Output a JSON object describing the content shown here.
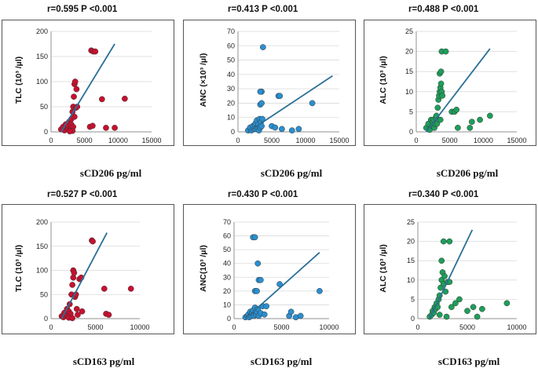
{
  "colors": {
    "red": "#c8102e",
    "blue": "#2a8fd0",
    "green": "#1e9e5a",
    "trend": "#2a6f97",
    "frame": "#555555"
  },
  "chart_data": [
    {
      "type": "scatter",
      "stat": "r=0.595    P <0.001",
      "ylabel": "TLC (10³ /µl)",
      "xlabel": "sCD206 pg/ml",
      "xlim": [
        0,
        15000
      ],
      "ylim": [
        0,
        200
      ],
      "xticks": [
        "0",
        "5000",
        "10000",
        "15000"
      ],
      "yticks": [
        "0",
        "50",
        "100",
        "150",
        "200"
      ],
      "color": "red",
      "trend": [
        [
          1500,
          0
        ],
        [
          9500,
          175
        ]
      ],
      "points": [
        [
          1500,
          5
        ],
        [
          1800,
          10
        ],
        [
          2000,
          3
        ],
        [
          2200,
          15
        ],
        [
          2400,
          8
        ],
        [
          2500,
          5
        ],
        [
          2600,
          12
        ],
        [
          2700,
          20
        ],
        [
          2800,
          3
        ],
        [
          2900,
          7
        ],
        [
          3000,
          15
        ],
        [
          3000,
          25
        ],
        [
          3100,
          5
        ],
        [
          3200,
          40
        ],
        [
          3300,
          10
        ],
        [
          3300,
          50
        ],
        [
          3400,
          70
        ],
        [
          3500,
          95
        ],
        [
          3500,
          30
        ],
        [
          3600,
          100
        ],
        [
          3700,
          48
        ],
        [
          3800,
          85
        ],
        [
          3900,
          50
        ],
        [
          3200,
          2
        ],
        [
          2800,
          1
        ],
        [
          6000,
          162
        ],
        [
          6300,
          160
        ],
        [
          6600,
          160
        ],
        [
          5800,
          10
        ],
        [
          6200,
          12
        ],
        [
          7600,
          65
        ],
        [
          8200,
          8
        ],
        [
          9500,
          8
        ],
        [
          11000,
          66
        ]
      ]
    },
    {
      "type": "scatter",
      "stat": "r=0.413    P <0.001",
      "ylabel": "ANC (×10³ /µl)",
      "xlabel": "sCD206 pg/ml",
      "xlim": [
        0,
        15000
      ],
      "ylim": [
        0,
        70
      ],
      "xticks": [
        "0",
        "5000",
        "10000",
        "15000"
      ],
      "yticks": [
        "0",
        "10",
        "20",
        "30",
        "40",
        "50",
        "60",
        "70"
      ],
      "color": "blue",
      "trend": [
        [
          1500,
          0
        ],
        [
          14000,
          39
        ]
      ],
      "points": [
        [
          1500,
          1
        ],
        [
          1800,
          3
        ],
        [
          2000,
          1
        ],
        [
          2200,
          4
        ],
        [
          2400,
          2
        ],
        [
          2500,
          5
        ],
        [
          2600,
          6
        ],
        [
          2700,
          2
        ],
        [
          2800,
          8
        ],
        [
          2900,
          3
        ],
        [
          3000,
          5
        ],
        [
          3100,
          1
        ],
        [
          3200,
          9
        ],
        [
          3300,
          3
        ],
        [
          3400,
          7
        ],
        [
          3500,
          4
        ],
        [
          3600,
          9
        ],
        [
          3300,
          19
        ],
        [
          3500,
          20
        ],
        [
          3500,
          28
        ],
        [
          3300,
          28
        ],
        [
          3700,
          59
        ],
        [
          5000,
          4
        ],
        [
          5500,
          3
        ],
        [
          6000,
          25
        ],
        [
          6200,
          25
        ],
        [
          6500,
          2
        ],
        [
          8000,
          1
        ],
        [
          9000,
          2
        ],
        [
          11000,
          20
        ]
      ]
    },
    {
      "type": "scatter",
      "stat": "r=0.488    P <0.001",
      "ylabel": "ALC (10³ /µl)",
      "xlabel": "sCD206 pg/ml",
      "xlim": [
        0,
        15000
      ],
      "ylim": [
        0,
        25
      ],
      "xticks": [
        "0",
        "5000",
        "10000",
        "15000"
      ],
      "yticks": [
        "0",
        "5",
        "10",
        "15",
        "20",
        "25"
      ],
      "color": "green",
      "trend": [
        [
          1500,
          0
        ],
        [
          11000,
          20.7
        ]
      ],
      "points": [
        [
          1500,
          1
        ],
        [
          1800,
          2
        ],
        [
          2000,
          0.5
        ],
        [
          2200,
          3
        ],
        [
          2400,
          1.5
        ],
        [
          2500,
          2.5
        ],
        [
          2600,
          3
        ],
        [
          2700,
          1
        ],
        [
          2800,
          2
        ],
        [
          2900,
          3.5
        ],
        [
          3000,
          4
        ],
        [
          3100,
          2
        ],
        [
          3200,
          6
        ],
        [
          3300,
          8
        ],
        [
          3400,
          9
        ],
        [
          3500,
          10
        ],
        [
          3600,
          11
        ],
        [
          3700,
          12
        ],
        [
          3800,
          10
        ],
        [
          3900,
          9
        ],
        [
          3500,
          14.5
        ],
        [
          3700,
          15
        ],
        [
          3800,
          20
        ],
        [
          4400,
          20
        ],
        [
          3600,
          3
        ],
        [
          5300,
          5
        ],
        [
          5700,
          5
        ],
        [
          6000,
          5.5
        ],
        [
          6200,
          1
        ],
        [
          8000,
          1
        ],
        [
          8300,
          2.5
        ],
        [
          9500,
          3
        ],
        [
          11000,
          4
        ]
      ]
    },
    {
      "type": "scatter",
      "stat": "r=0.527    P <0.001",
      "ylabel": "TLC (10³ /µl)",
      "xlabel": "sCD163 pg/ml",
      "xlim": [
        0,
        10000
      ],
      "ylim": [
        0,
        200
      ],
      "xticks": [
        "0",
        "5000",
        "10000"
      ],
      "yticks": [
        "0",
        "50",
        "100",
        "150",
        "200"
      ],
      "color": "red",
      "trend": [
        [
          1200,
          0
        ],
        [
          6300,
          178
        ]
      ],
      "points": [
        [
          1200,
          5
        ],
        [
          1400,
          3
        ],
        [
          1500,
          12
        ],
        [
          1700,
          8
        ],
        [
          1800,
          20
        ],
        [
          1900,
          6
        ],
        [
          2000,
          15
        ],
        [
          2100,
          30
        ],
        [
          2200,
          10
        ],
        [
          2300,
          50
        ],
        [
          2400,
          70
        ],
        [
          2500,
          85
        ],
        [
          2500,
          100
        ],
        [
          2600,
          95
        ],
        [
          2700,
          45
        ],
        [
          2800,
          50
        ],
        [
          2900,
          20
        ],
        [
          3000,
          8
        ],
        [
          3200,
          82
        ],
        [
          3400,
          85
        ],
        [
          2000,
          2
        ],
        [
          2400,
          1
        ],
        [
          3500,
          15
        ],
        [
          4600,
          162
        ],
        [
          4700,
          160
        ],
        [
          6000,
          62
        ],
        [
          6200,
          10
        ],
        [
          6500,
          8
        ],
        [
          9000,
          62
        ]
      ]
    },
    {
      "type": "scatter",
      "stat": "r=0.430    P <0.001",
      "ylabel": "ANC(10³ /µl)",
      "xlabel": "sCD163 pg/ml",
      "xlim": [
        0,
        10000
      ],
      "ylim": [
        0,
        70
      ],
      "xticks": [
        "0",
        "5000",
        "10000"
      ],
      "yticks": [
        "0",
        "10",
        "20",
        "30",
        "40",
        "50",
        "60",
        "70"
      ],
      "color": "blue",
      "trend": [
        [
          1200,
          0
        ],
        [
          9000,
          48
        ]
      ],
      "points": [
        [
          1200,
          1
        ],
        [
          1400,
          2
        ],
        [
          1500,
          3
        ],
        [
          1600,
          1
        ],
        [
          1700,
          5
        ],
        [
          1800,
          2
        ],
        [
          1900,
          4
        ],
        [
          2000,
          6
        ],
        [
          2100,
          2
        ],
        [
          2200,
          8
        ],
        [
          2300,
          3
        ],
        [
          2400,
          5
        ],
        [
          2500,
          7
        ],
        [
          2600,
          2
        ],
        [
          2800,
          4
        ],
        [
          3000,
          9
        ],
        [
          3200,
          3
        ],
        [
          3400,
          9
        ],
        [
          2200,
          20
        ],
        [
          2400,
          20
        ],
        [
          2600,
          28
        ],
        [
          2800,
          28
        ],
        [
          2000,
          59
        ],
        [
          2200,
          59
        ],
        [
          4800,
          25
        ],
        [
          2500,
          40
        ],
        [
          5800,
          2
        ],
        [
          6000,
          5
        ],
        [
          6500,
          1
        ],
        [
          7000,
          2
        ],
        [
          9000,
          20
        ]
      ]
    },
    {
      "type": "scatter",
      "stat": "r=0.340    P <0.001",
      "ylabel": "ALC (10³ /µl)",
      "xlabel": "sCD163 pg/ml",
      "xlim": [
        0,
        10000
      ],
      "ylim": [
        0,
        25
      ],
      "xticks": [
        "0",
        "5000",
        "10000"
      ],
      "yticks": [
        "0",
        "5",
        "10",
        "15",
        "20",
        "25"
      ],
      "color": "green",
      "trend": [
        [
          1200,
          0
        ],
        [
          5500,
          23
        ]
      ],
      "points": [
        [
          1200,
          0.5
        ],
        [
          1400,
          1
        ],
        [
          1500,
          2
        ],
        [
          1600,
          1.5
        ],
        [
          1700,
          3
        ],
        [
          1800,
          2.5
        ],
        [
          1900,
          4
        ],
        [
          2000,
          3
        ],
        [
          2100,
          5
        ],
        [
          2200,
          6
        ],
        [
          2300,
          8
        ],
        [
          2400,
          10
        ],
        [
          2500,
          12
        ],
        [
          2600,
          9
        ],
        [
          2700,
          11
        ],
        [
          2800,
          7
        ],
        [
          3000,
          9.5
        ],
        [
          3200,
          9.5
        ],
        [
          2400,
          15
        ],
        [
          2600,
          20
        ],
        [
          3200,
          20
        ],
        [
          2200,
          1
        ],
        [
          2900,
          0.5
        ],
        [
          3400,
          3
        ],
        [
          3800,
          4
        ],
        [
          4200,
          5
        ],
        [
          5000,
          2
        ],
        [
          5600,
          3
        ],
        [
          6000,
          0.5
        ],
        [
          6500,
          2.5
        ],
        [
          9000,
          4
        ]
      ]
    }
  ]
}
